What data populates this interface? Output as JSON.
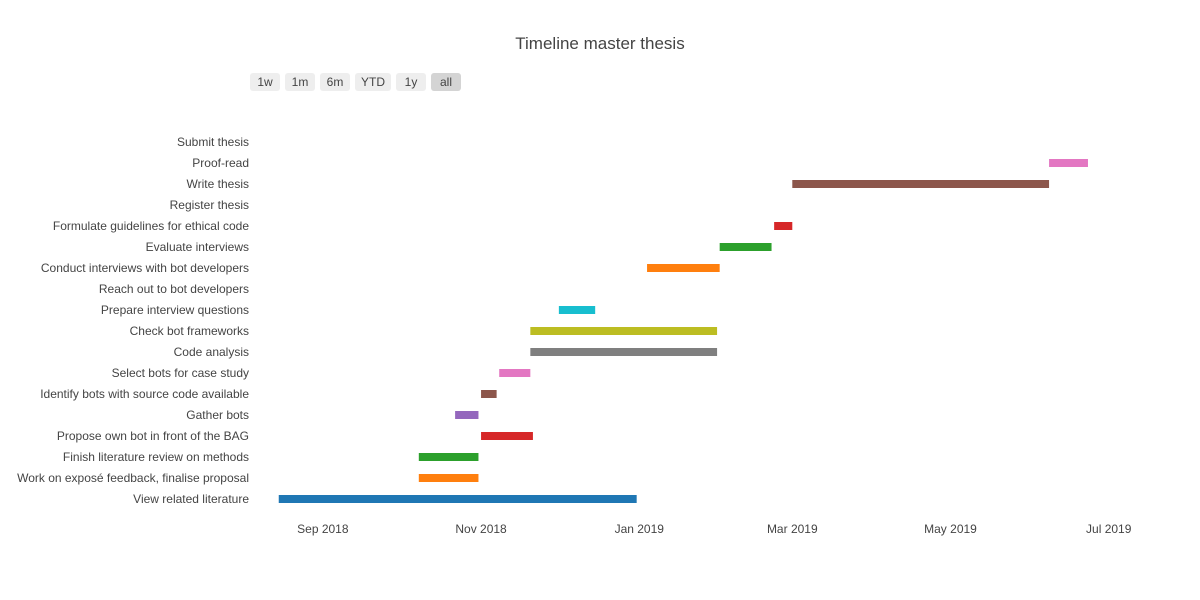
{
  "chart_data": {
    "type": "gantt",
    "title": "Timeline master thesis",
    "range_buttons": [
      {
        "label": "1w",
        "active": false
      },
      {
        "label": "1m",
        "active": false
      },
      {
        "label": "6m",
        "active": false
      },
      {
        "label": "YTD",
        "active": false
      },
      {
        "label": "1y",
        "active": false
      },
      {
        "label": "all",
        "active": true
      }
    ],
    "x_ticks": [
      {
        "date": "2018-09-01",
        "label": "Sep 2018"
      },
      {
        "date": "2018-11-01",
        "label": "Nov 2018"
      },
      {
        "date": "2019-01-01",
        "label": "Jan 2019"
      },
      {
        "date": "2019-03-01",
        "label": "Mar 2019"
      },
      {
        "date": "2019-05-01",
        "label": "May 2019"
      },
      {
        "date": "2019-07-01",
        "label": "Jul 2019"
      }
    ],
    "xlim": [
      "2018-08-07",
      "2019-07-20"
    ],
    "tasks": [
      {
        "task": "Submit thesis",
        "start": null,
        "end": null,
        "color": null
      },
      {
        "task": "Proof-read",
        "start": "2019-06-08",
        "end": "2019-06-23",
        "color": "#e377c2"
      },
      {
        "task": "Write thesis",
        "start": "2019-03-01",
        "end": "2019-06-08",
        "color": "#8c564b"
      },
      {
        "task": "Register thesis",
        "start": null,
        "end": null,
        "color": null
      },
      {
        "task": "Formulate guidelines for ethical code",
        "start": "2019-02-22",
        "end": "2019-03-01",
        "color": "#d62728"
      },
      {
        "task": "Evaluate interviews",
        "start": "2019-02-01",
        "end": "2019-02-21",
        "color": "#2ca02c"
      },
      {
        "task": "Conduct interviews with bot developers",
        "start": "2019-01-04",
        "end": "2019-02-01",
        "color": "#ff7f0e"
      },
      {
        "task": "Reach out to bot developers",
        "start": null,
        "end": null,
        "color": null
      },
      {
        "task": "Prepare interview questions",
        "start": "2018-12-01",
        "end": "2018-12-15",
        "color": "#17becf"
      },
      {
        "task": "Check bot frameworks",
        "start": "2018-11-20",
        "end": "2019-01-31",
        "color": "#bcbd22"
      },
      {
        "task": "Code analysis",
        "start": "2018-11-20",
        "end": "2019-01-31",
        "color": "#7f7f7f"
      },
      {
        "task": "Select bots for case study",
        "start": "2018-11-08",
        "end": "2018-11-20",
        "color": "#e377c2"
      },
      {
        "task": "Identify bots with source code available",
        "start": "2018-11-01",
        "end": "2018-11-07",
        "color": "#8c564b"
      },
      {
        "task": "Gather bots",
        "start": "2018-10-22",
        "end": "2018-10-31",
        "color": "#9467bd"
      },
      {
        "task": "Propose own bot in front of the BAG",
        "start": "2018-11-01",
        "end": "2018-11-21",
        "color": "#d62728"
      },
      {
        "task": "Finish literature review on methods",
        "start": "2018-10-08",
        "end": "2018-10-31",
        "color": "#2ca02c"
      },
      {
        "task": "Work on exposé feedback, finalise proposal",
        "start": "2018-10-08",
        "end": "2018-10-31",
        "color": "#ff7f0e"
      },
      {
        "task": "View related literature",
        "start": "2018-08-15",
        "end": "2018-12-31",
        "color": "#1f77b4"
      }
    ]
  }
}
